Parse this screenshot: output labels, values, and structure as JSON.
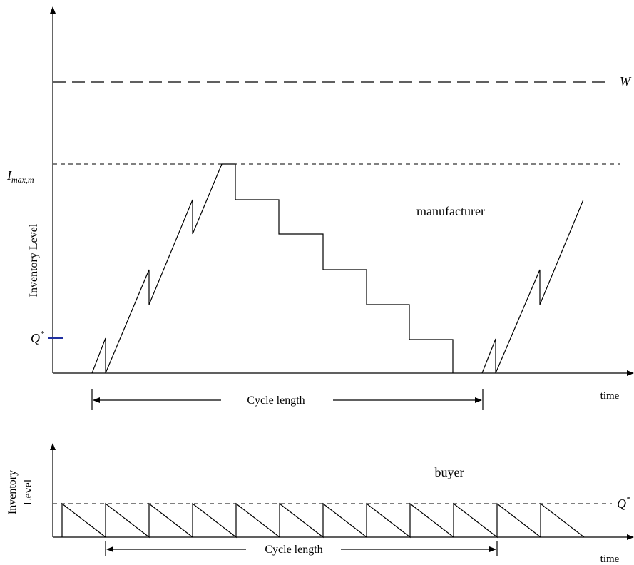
{
  "top_chart": {
    "y_axis_label": "Inventory Level",
    "x_axis_label": "time",
    "w_label": "W",
    "imax_label": {
      "base": "I",
      "sub": "max,m"
    },
    "q_label": {
      "base": "Q",
      "sup": "*"
    },
    "series_label": "manufacturer",
    "cycle_label": "Cycle length"
  },
  "bottom_chart": {
    "y_axis_label_line1": "Inventory",
    "y_axis_label_line2": "Level",
    "x_axis_label": "time",
    "q_label": {
      "base": "Q",
      "sup": "*"
    },
    "series_label": "buyer",
    "cycle_label": "Cycle length"
  },
  "colors": {
    "ink": "#000000",
    "q_tick": "#1f2fa0"
  }
}
